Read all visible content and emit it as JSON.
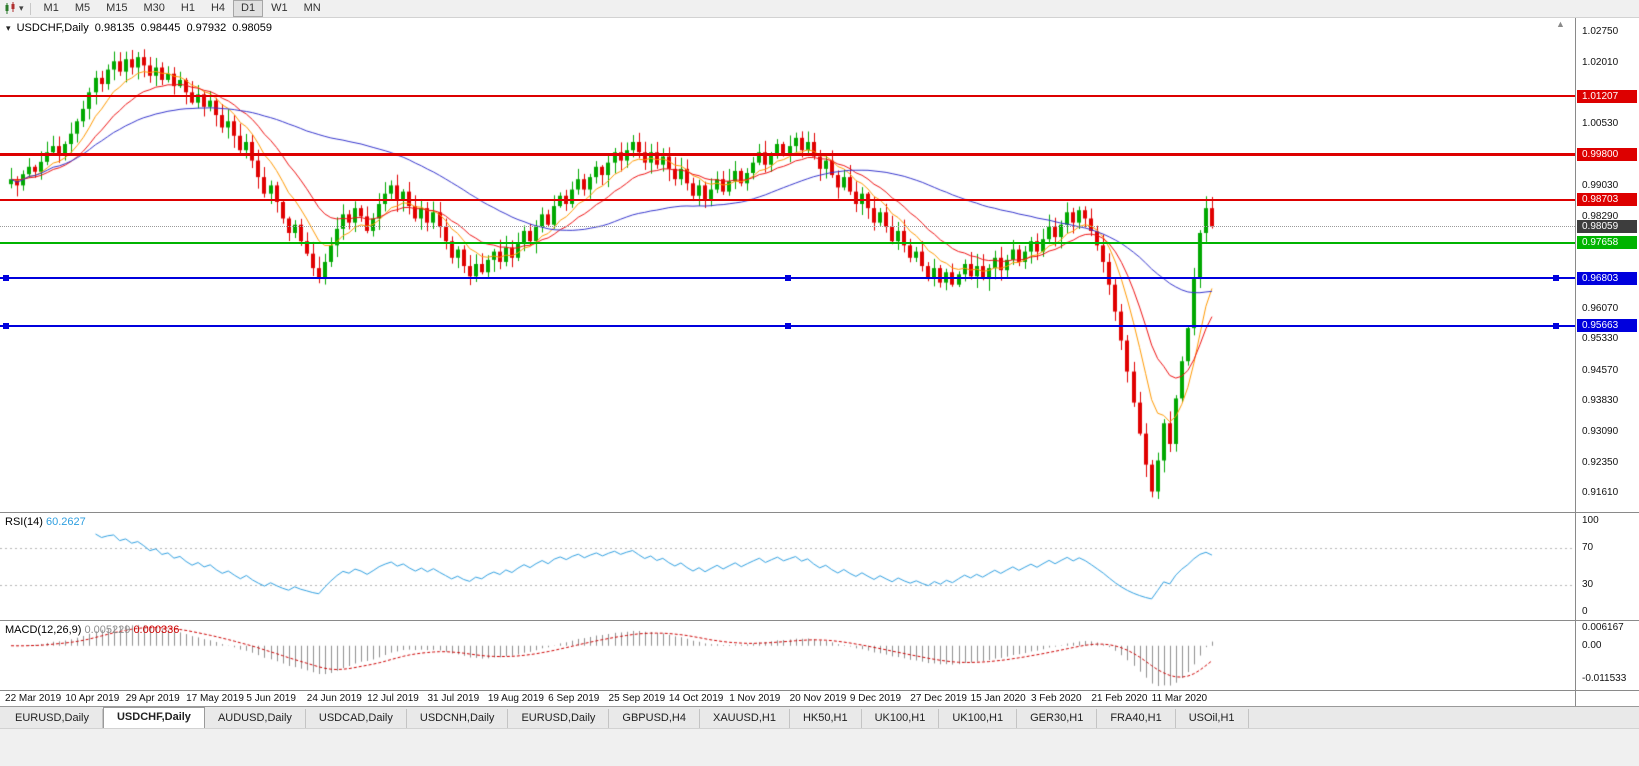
{
  "toolbar": {
    "timeframes": [
      "M1",
      "M5",
      "M15",
      "M30",
      "H1",
      "H4",
      "D1",
      "W1",
      "MN"
    ],
    "active_timeframe": "D1"
  },
  "main_chart": {
    "symbol_period": "USDCHF,Daily",
    "open": "0.98135",
    "high": "0.98445",
    "low": "0.97932",
    "close": "0.98059"
  },
  "price_axis": {
    "ticks": [
      "1.02750",
      "1.02010",
      "1.00530",
      "0.99030",
      "0.98290",
      "0.96070",
      "0.95330",
      "0.94570",
      "0.93830",
      "0.93090",
      "0.92350",
      "0.91610"
    ],
    "current_price": {
      "value": 0.98059,
      "label": "0.98059",
      "badge_color": "#3d3d3d"
    }
  },
  "hlines": [
    {
      "value": 1.01207,
      "label": "1.01207",
      "color": "#dd0000",
      "thickness": 2,
      "handles": false
    },
    {
      "value": 0.998,
      "label": "0.99800",
      "color": "#dd0000",
      "thickness": 3,
      "handles": false
    },
    {
      "value": 0.98703,
      "label": "0.98703",
      "color": "#dd0000",
      "thickness": 2,
      "handles": false
    },
    {
      "value": 0.97658,
      "label": "0.97658",
      "color": "#00b400",
      "thickness": 2,
      "handles": false
    },
    {
      "value": 0.96803,
      "label": "0.96803",
      "color": "#0000dd",
      "thickness": 2,
      "handles": true
    },
    {
      "value": 0.95663,
      "label": "0.95663",
      "color": "#0000dd",
      "thickness": 2,
      "handles": true
    }
  ],
  "rsi": {
    "label": "RSI(14)",
    "value": "60.2627",
    "period": 14,
    "color": "#2f9fe0",
    "levels": [
      "100",
      "70",
      "30",
      "0"
    ],
    "level_lines": [
      70,
      30
    ]
  },
  "macd": {
    "label": "MACD(12,26,9)",
    "main_value": "0.005229",
    "signal_value": "0.000336",
    "params": [
      12,
      26,
      9
    ],
    "axis_labels": [
      "0.006167",
      "0.00",
      "-0.011533"
    ],
    "histogram_color": "#8f8f8f",
    "signal_color": "#cc0000"
  },
  "tabs": {
    "items": [
      "EURUSD,Daily",
      "USDCHF,Daily",
      "AUDUSD,Daily",
      "USDCAD,Daily",
      "USDCNH,Daily",
      "EURUSD,Daily",
      "GBPUSD,H4",
      "XAUUSD,H1",
      "HK50,H1",
      "UK100,H1",
      "UK100,H1",
      "GER30,H1",
      "FRA40,H1",
      "USOil,H1"
    ],
    "active_index": 1
  },
  "chart_data": {
    "type": "candlestick",
    "symbol": "USDCHF",
    "timeframe": "Daily",
    "y_range": [
      0.913,
      1.03
    ],
    "up_color": "#00a800",
    "down_color": "#e00000",
    "label_step": 10,
    "x_labels": [
      "22 Mar 2019",
      "10 Apr 2019",
      "29 Apr 2019",
      "17 May 2019",
      "5 Jun 2019",
      "24 Jun 2019",
      "12 Jul 2019",
      "31 Jul 2019",
      "19 Aug 2019",
      "6 Sep 2019",
      "25 Sep 2019",
      "14 Oct 2019",
      "1 Nov 2019",
      "20 Nov 2019",
      "9 Dec 2019",
      "27 Dec 2019",
      "15 Jan 2020",
      "3 Feb 2020",
      "21 Feb 2020",
      "11 Mar 2020"
    ],
    "closes": [
      0.992,
      0.9905,
      0.9932,
      0.995,
      0.9938,
      0.9962,
      0.9985,
      1.0,
      0.9978,
      1.0005,
      1.003,
      1.006,
      1.009,
      1.013,
      1.0165,
      1.015,
      1.0185,
      1.0205,
      1.018,
      1.021,
      1.019,
      1.0215,
      1.0195,
      1.017,
      1.019,
      1.016,
      1.0175,
      1.0145,
      1.016,
      1.013,
      1.0105,
      1.0125,
      1.0095,
      1.011,
      1.0075,
      1.0045,
      1.006,
      1.0025,
      0.999,
      1.001,
      0.9965,
      0.9925,
      0.9885,
      0.9905,
      0.9865,
      0.9825,
      0.979,
      0.981,
      0.977,
      0.974,
      0.9705,
      0.968,
      0.972,
      0.976,
      0.98,
      0.9835,
      0.9815,
      0.985,
      0.983,
      0.9795,
      0.9825,
      0.986,
      0.9885,
      0.9905,
      0.987,
      0.989,
      0.9855,
      0.9825,
      0.985,
      0.9815,
      0.984,
      0.9805,
      0.977,
      0.973,
      0.975,
      0.971,
      0.9685,
      0.9715,
      0.9695,
      0.9725,
      0.9745,
      0.972,
      0.9755,
      0.973,
      0.9765,
      0.9795,
      0.977,
      0.9805,
      0.9835,
      0.981,
      0.9855,
      0.988,
      0.986,
      0.9895,
      0.992,
      0.9895,
      0.9925,
      0.995,
      0.993,
      0.996,
      0.9985,
      0.9965,
      0.999,
      1.001,
      0.9985,
      0.996,
      0.9985,
      0.9955,
      0.9975,
      0.9945,
      0.992,
      0.9945,
      0.991,
      0.988,
      0.9905,
      0.987,
      0.9895,
      0.992,
      0.989,
      0.9915,
      0.994,
      0.991,
      0.9935,
      0.996,
      0.9985,
      0.9955,
      0.998,
      1.0005,
      0.998,
      1.0,
      1.002,
      0.999,
      1.001,
      0.9975,
      0.9945,
      0.9965,
      0.993,
      0.99,
      0.9925,
      0.989,
      0.986,
      0.9885,
      0.985,
      0.9815,
      0.984,
      0.9805,
      0.977,
      0.9795,
      0.976,
      0.973,
      0.9745,
      0.971,
      0.968,
      0.9705,
      0.967,
      0.9695,
      0.9665,
      0.969,
      0.9715,
      0.9685,
      0.971,
      0.968,
      0.9705,
      0.973,
      0.97,
      0.9725,
      0.975,
      0.972,
      0.9745,
      0.977,
      0.9745,
      0.9775,
      0.9805,
      0.978,
      0.981,
      0.984,
      0.9815,
      0.9845,
      0.9825,
      0.9795,
      0.976,
      0.972,
      0.9665,
      0.96,
      0.953,
      0.9455,
      0.938,
      0.9305,
      0.923,
      0.9165,
      0.924,
      0.933,
      0.928,
      0.939,
      0.948,
      0.956,
      0.968,
      0.979,
      0.985,
      0.9806
    ],
    "moving_averages": [
      {
        "period": 8,
        "method": "ema",
        "color": "#ff9900"
      },
      {
        "period": 16,
        "method": "ema",
        "color": "#ee1111"
      },
      {
        "period": 50,
        "method": "sma",
        "color": "#3333cc"
      }
    ]
  }
}
